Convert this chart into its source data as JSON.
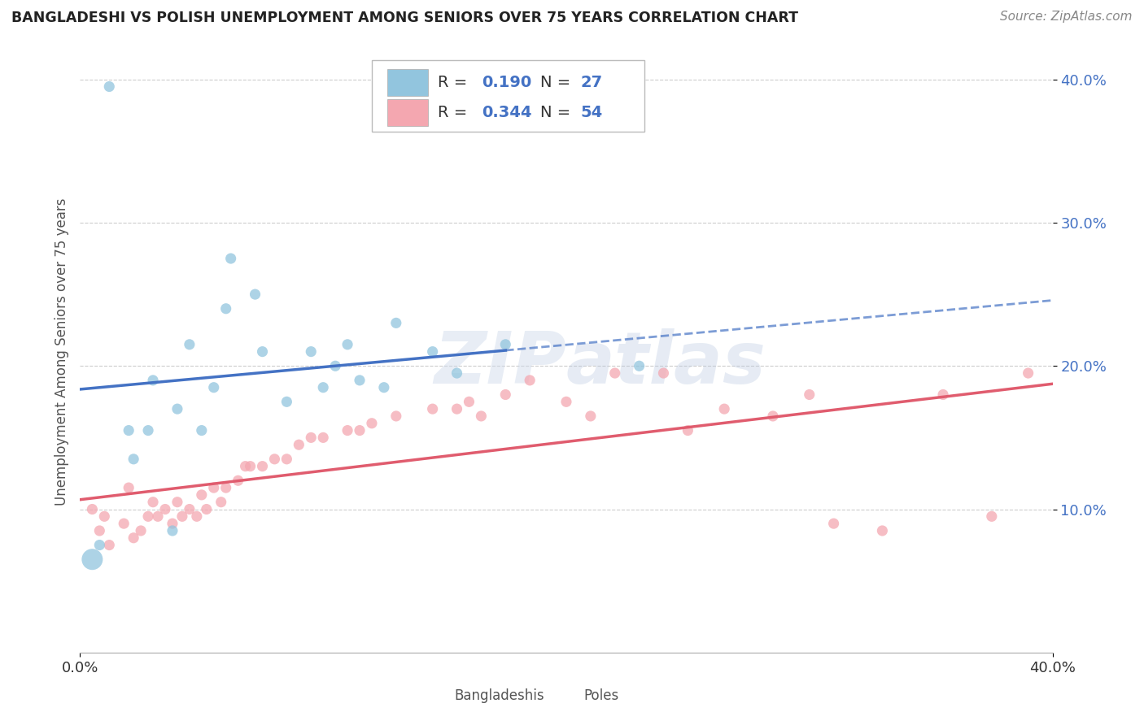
{
  "title": "BANGLADESHI VS POLISH UNEMPLOYMENT AMONG SENIORS OVER 75 YEARS CORRELATION CHART",
  "source": "Source: ZipAtlas.com",
  "ylabel": "Unemployment Among Seniors over 75 years",
  "xlim": [
    0.0,
    0.4
  ],
  "ylim": [
    0.0,
    0.42
  ],
  "yticks": [
    0.1,
    0.2,
    0.3,
    0.4
  ],
  "ytick_labels": [
    "10.0%",
    "20.0%",
    "30.0%",
    "40.0%"
  ],
  "xtick_labels": [
    "0.0%",
    "40.0%"
  ],
  "watermark": "ZIPatlas",
  "bangladeshi_R": 0.19,
  "bangladeshi_N": 27,
  "polish_R": 0.344,
  "polish_N": 54,
  "bangladeshi_color": "#92c5de",
  "polish_color": "#f4a7b0",
  "bangladeshi_line_color": "#4472c4",
  "polish_line_color": "#e05c6e",
  "bangladeshi_x": [
    0.008,
    0.012,
    0.02,
    0.022,
    0.028,
    0.03,
    0.038,
    0.04,
    0.045,
    0.05,
    0.055,
    0.06,
    0.062,
    0.072,
    0.075,
    0.085,
    0.095,
    0.1,
    0.105,
    0.11,
    0.115,
    0.125,
    0.13,
    0.145,
    0.155,
    0.175,
    0.23
  ],
  "bangladeshi_y": [
    0.075,
    0.395,
    0.155,
    0.135,
    0.155,
    0.19,
    0.085,
    0.17,
    0.215,
    0.155,
    0.185,
    0.24,
    0.275,
    0.25,
    0.21,
    0.175,
    0.21,
    0.185,
    0.2,
    0.215,
    0.19,
    0.185,
    0.23,
    0.21,
    0.195,
    0.215,
    0.2
  ],
  "polish_x": [
    0.005,
    0.008,
    0.01,
    0.012,
    0.018,
    0.02,
    0.022,
    0.025,
    0.028,
    0.03,
    0.032,
    0.035,
    0.038,
    0.04,
    0.042,
    0.045,
    0.048,
    0.05,
    0.052,
    0.055,
    0.058,
    0.06,
    0.065,
    0.068,
    0.07,
    0.075,
    0.08,
    0.085,
    0.09,
    0.095,
    0.1,
    0.11,
    0.115,
    0.12,
    0.13,
    0.145,
    0.155,
    0.16,
    0.165,
    0.175,
    0.185,
    0.2,
    0.21,
    0.22,
    0.24,
    0.25,
    0.265,
    0.285,
    0.3,
    0.31,
    0.33,
    0.355,
    0.375,
    0.39
  ],
  "polish_y": [
    0.1,
    0.085,
    0.095,
    0.075,
    0.09,
    0.115,
    0.08,
    0.085,
    0.095,
    0.105,
    0.095,
    0.1,
    0.09,
    0.105,
    0.095,
    0.1,
    0.095,
    0.11,
    0.1,
    0.115,
    0.105,
    0.115,
    0.12,
    0.13,
    0.13,
    0.13,
    0.135,
    0.135,
    0.145,
    0.15,
    0.15,
    0.155,
    0.155,
    0.16,
    0.165,
    0.17,
    0.17,
    0.175,
    0.165,
    0.18,
    0.19,
    0.175,
    0.165,
    0.195,
    0.195,
    0.155,
    0.17,
    0.165,
    0.18,
    0.09,
    0.085,
    0.18,
    0.095,
    0.195
  ],
  "large_bd_x": [
    0.005
  ],
  "large_bd_y": [
    0.065
  ],
  "large_bd_size": 350
}
